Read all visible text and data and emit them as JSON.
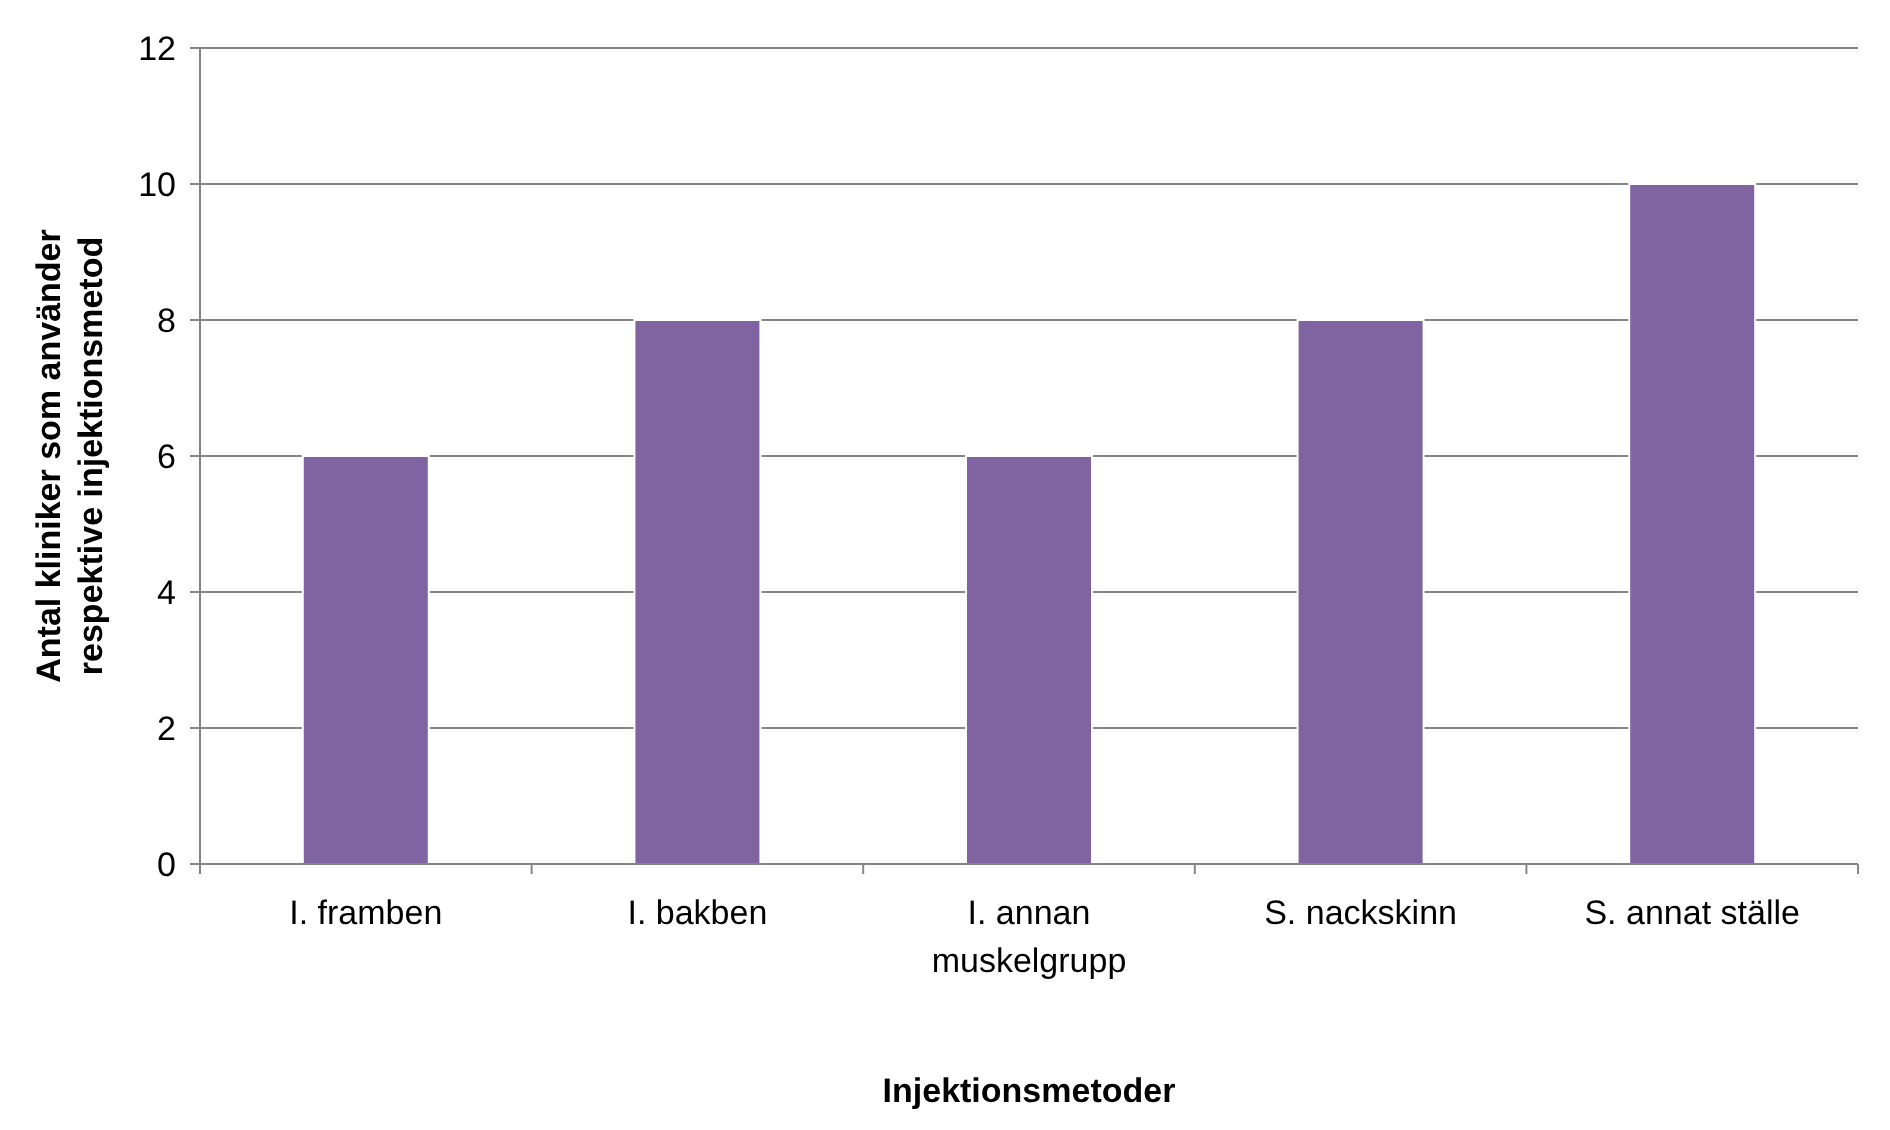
{
  "chart_data": {
    "type": "bar",
    "xlabel": "Injektionsmetoder",
    "ylabel": "Antal kliniker som använder respektive injektionsmetod",
    "categories": [
      "I. framben",
      "I. bakben",
      "I. annan muskelgrupp",
      "S. nackskinn",
      "S. annat ställe"
    ],
    "values": [
      6,
      8,
      6,
      8,
      10
    ],
    "color": "#8064a2",
    "ylim": [
      0,
      12
    ],
    "yticks": [
      0,
      2,
      4,
      6,
      8,
      10,
      12
    ],
    "grid": "y"
  }
}
